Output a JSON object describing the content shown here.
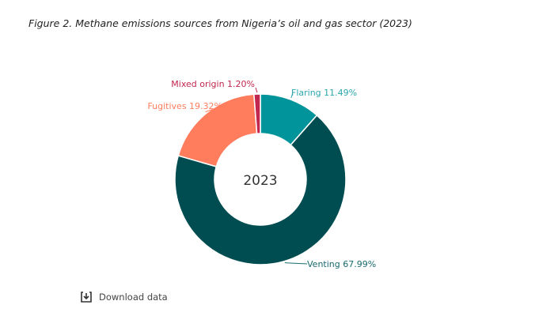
{
  "title": "Figure 2. Methane emissions sources from Nigeria’s oil and gas sector (2023)",
  "download_label": "Download data",
  "chart_data": {
    "type": "pie",
    "donut": true,
    "center_label": "2023",
    "slices": [
      {
        "name": "Flaring",
        "value": 11.49,
        "label": "Flaring 11.49%",
        "color": "#01949a"
      },
      {
        "name": "Venting",
        "value": 67.99,
        "label": "Venting 67.99%",
        "color": "#004d51"
      },
      {
        "name": "Fugitives",
        "value": 19.32,
        "label": "Fugitives 19.32%",
        "color": "#ff7c5c"
      },
      {
        "name": "Mixed origin",
        "value": 1.2,
        "label": "Mixed origin 1.20%",
        "color": "#c1274f"
      }
    ],
    "label_colors": {
      "Flaring": "#2aa7ad",
      "Venting": "#1a6a6e",
      "Fugitives": "#ff7c5c",
      "Mixed origin": "#c1274f"
    }
  }
}
